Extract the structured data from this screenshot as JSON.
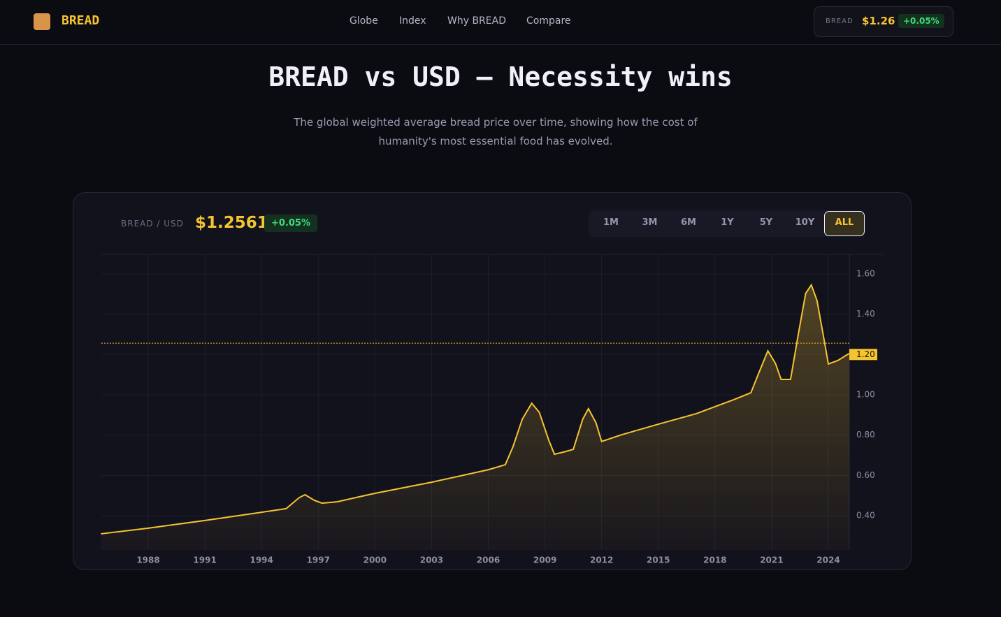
{
  "header": {
    "brand": "BREAD",
    "nav": [
      "Globe",
      "Index",
      "Why BREAD",
      "Compare"
    ],
    "ticker": {
      "symbol": "BREAD",
      "price": "$1.26",
      "change": "+0.05%"
    }
  },
  "hero": {
    "title": "BREAD vs USD — Necessity wins",
    "subtitle": "The global weighted average bread price over time, showing how the cost of humanity's most essential food has evolved."
  },
  "panel": {
    "pair": "BREAD / USD",
    "price": "$1.2561",
    "change": "+0.05%",
    "ranges": [
      "1M",
      "3M",
      "6M",
      "1Y",
      "5Y",
      "10Y",
      "ALL"
    ]
  },
  "chart_data": {
    "type": "area",
    "color": "#f5c431",
    "x": [
      1985.5,
      1988,
      1991,
      1994,
      1995.3,
      1996,
      1996.3,
      1996.8,
      1997.2,
      1998,
      2000,
      2003,
      2006,
      2006.9,
      2007.3,
      2007.8,
      2008.3,
      2008.7,
      2009.2,
      2009.5,
      2010,
      2010.5,
      2011,
      2011.3,
      2011.7,
      2012,
      2013,
      2015,
      2017,
      2018,
      2019,
      2019.9,
      2020.3,
      2020.8,
      2021.2,
      2021.5,
      2022,
      2022.4,
      2022.8,
      2023.1,
      2023.4,
      2023.8,
      2024,
      2024.5,
      2025.1
    ],
    "series": [
      {
        "name": "BREAD / USD",
        "color": "#f5c431",
        "values": [
          0.31,
          0.338,
          0.376,
          0.417,
          0.435,
          0.49,
          0.504,
          0.476,
          0.462,
          0.469,
          0.511,
          0.566,
          0.628,
          0.653,
          0.74,
          0.879,
          0.958,
          0.913,
          0.775,
          0.705,
          0.716,
          0.729,
          0.879,
          0.931,
          0.861,
          0.768,
          0.8,
          0.854,
          0.906,
          0.941,
          0.976,
          1.01,
          1.104,
          1.218,
          1.156,
          1.076,
          1.076,
          1.295,
          1.503,
          1.545,
          1.468,
          1.26,
          1.153,
          1.17,
          1.205
        ]
      }
    ],
    "xlim": [
      1985.52,
      2025.11
    ],
    "ylim": [
      0.23,
      1.697
    ],
    "xticks": [
      1988,
      1991,
      1994,
      1997,
      2000,
      2003,
      2006,
      2009,
      2012,
      2015,
      2018,
      2021,
      2024
    ],
    "yticks": [
      {
        "value": 0.4,
        "label": "0.40"
      },
      {
        "value": 0.6,
        "label": "0.60"
      },
      {
        "value": 0.8,
        "label": "0.80"
      },
      {
        "value": 1.0,
        "label": "1.00"
      },
      {
        "value": 1.2,
        "label": "1.20"
      },
      {
        "value": 1.4,
        "label": "1.40"
      },
      {
        "value": 1.6,
        "label": "1.60"
      }
    ],
    "highlight_tick": {
      "value": 1.2,
      "label": "1.20"
    },
    "reference_line": 1.2561,
    "grid": true
  }
}
